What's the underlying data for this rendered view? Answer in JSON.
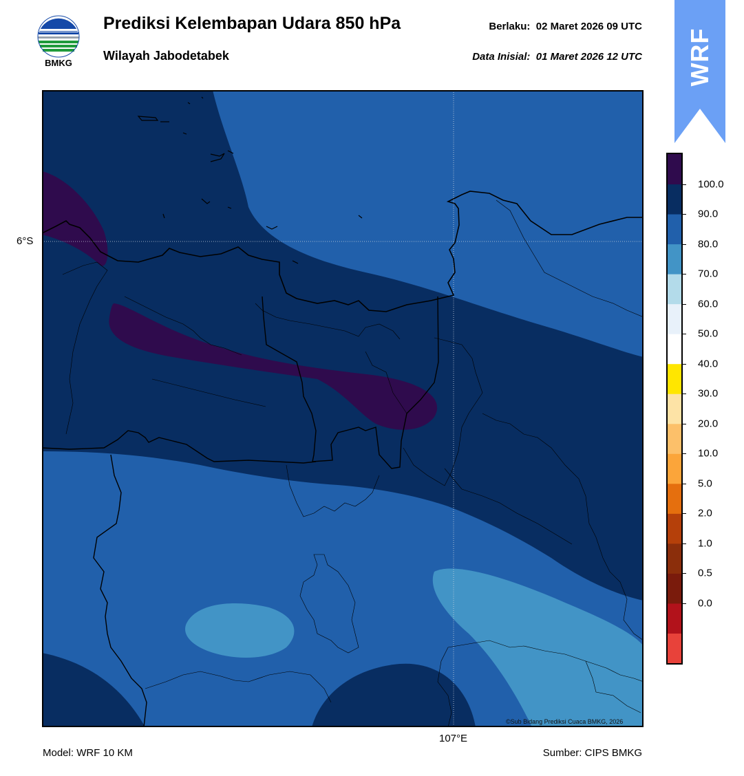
{
  "header": {
    "logo_text": "BMKG",
    "title": "Prediksi Kelembapan Udara 850 hPa",
    "subtitle": "Wilayah Jabodetabek",
    "valid_label": "Berlaku:",
    "valid_value": "02 Maret 2026 09 UTC",
    "init_label": "Data Inisial:",
    "init_value": "01 Maret 2026 12 UTC",
    "model_badge": "WRF"
  },
  "map": {
    "lat_label": "6°S",
    "lon_label": "107°E",
    "copyright": "©Sub Bidang Prediksi Cuaca BMKG, 2026"
  },
  "colorbar": {
    "ticks": [
      "100.0",
      "90.0",
      "80.0",
      "70.0",
      "60.0",
      "50.0",
      "40.0",
      "30.0",
      "20.0",
      "10.0",
      "5.0",
      "2.0",
      "1.0",
      "0.5",
      "0.0"
    ],
    "colors": [
      "#e8423a",
      "#b2121b",
      "#7a1b0c",
      "#8b2e0b",
      "#b5400a",
      "#e56f0e",
      "#fba53a",
      "#fcc06a",
      "#fde3a6",
      "#ffe600",
      "#ffffff",
      "#e8f1fa",
      "#b3dbea",
      "#4294c6",
      "#2160ab",
      "#082d61",
      "#2f0b4d"
    ]
  },
  "footer": {
    "model": "Model: WRF 10 KM",
    "source": "Sumber: CIPS BMKG"
  },
  "colors": {
    "band_100": "#2f0b4d",
    "band_90": "#082d61",
    "band_80": "#2160ab",
    "band_70": "#4294c6",
    "wrf_badge": "#6ba0f5"
  }
}
